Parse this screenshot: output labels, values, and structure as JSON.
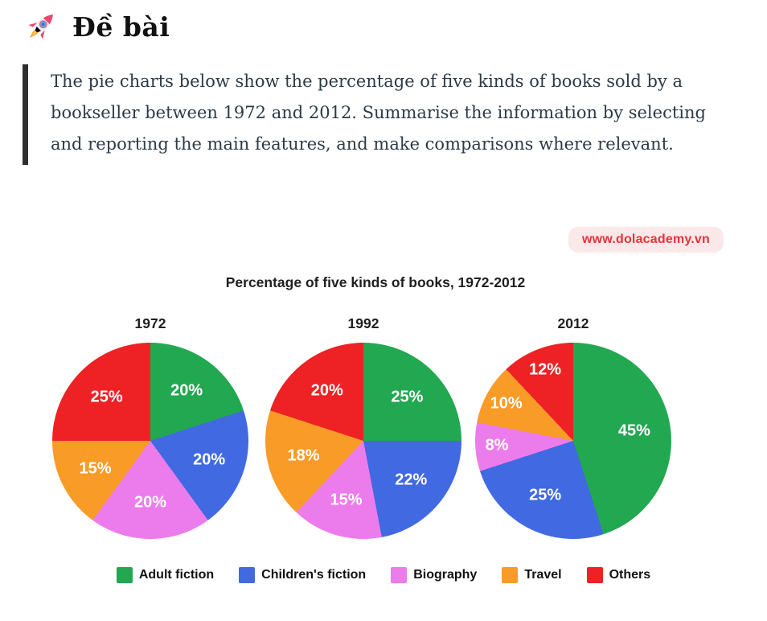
{
  "header": {
    "title": "Đề bài",
    "icon": "rocket-icon"
  },
  "prompt": {
    "text": "The pie charts below show the percentage of five kinds of books sold by a bookseller between 1972 and 2012. Summarise the information by selecting and reporting the main features, and make comparisons where relevant."
  },
  "watermark": {
    "text": "www.dolacademy.vn",
    "text_color": "#e5333a",
    "bg_color": "#fbe8e8"
  },
  "chart_data": {
    "type": "pie",
    "title": "Percentage of five kinds of books, 1972-2012",
    "categories": [
      "Adult fiction",
      "Children's fiction",
      "Biography",
      "Travel",
      "Others"
    ],
    "colors": [
      "#22a850",
      "#4169e1",
      "#ec7ceb",
      "#f89b27",
      "#ee2224"
    ],
    "unit": "%",
    "label_color": "#ffffff",
    "legend_position": "bottom",
    "pies": [
      {
        "label": "1972",
        "values": [
          20,
          20,
          20,
          15,
          25
        ]
      },
      {
        "label": "1992",
        "values": [
          25,
          22,
          15,
          18,
          20
        ]
      },
      {
        "label": "2012",
        "values": [
          45,
          25,
          8,
          10,
          12
        ]
      }
    ]
  }
}
